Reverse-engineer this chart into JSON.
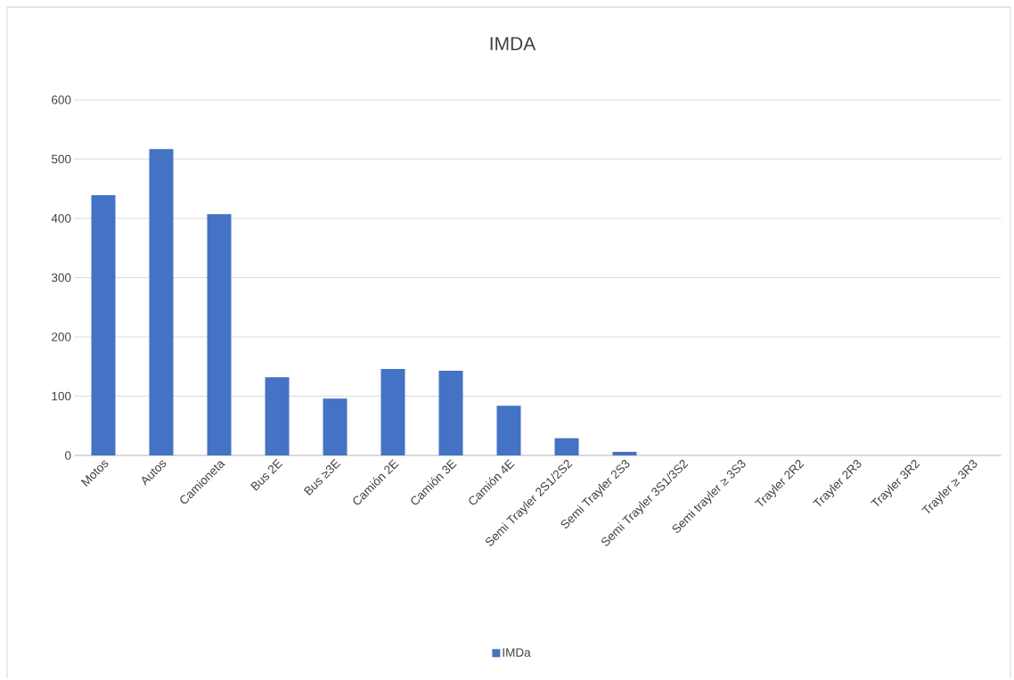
{
  "chart_data": {
    "type": "bar",
    "title": "IMDA",
    "categories": [
      "Motos",
      "Autos",
      "Camioneta",
      "Bus 2E",
      "Bus ≥3E",
      "Camión 2E",
      "Camión 3E",
      "Camión 4E",
      "Semi Trayler 2S1/2S2",
      "Semi Trayler 2S3",
      "Semi Trayler 3S1/3S2",
      "Semi trayler ≥ 3S3",
      "Trayler 2R2",
      "Trayler 2R3",
      "Trayler 3R2",
      "Trayler ≥ 3R3"
    ],
    "series": [
      {
        "name": "IMDa",
        "color": "#4472c4",
        "values": [
          439,
          517,
          407,
          132,
          96,
          146,
          143,
          84,
          29,
          6,
          0,
          0,
          0,
          0,
          0,
          0
        ]
      }
    ],
    "ylim": [
      0,
      600
    ],
    "yticks": [
      0,
      100,
      200,
      300,
      400,
      500,
      600
    ],
    "grid": "y",
    "legend": "bottom"
  }
}
